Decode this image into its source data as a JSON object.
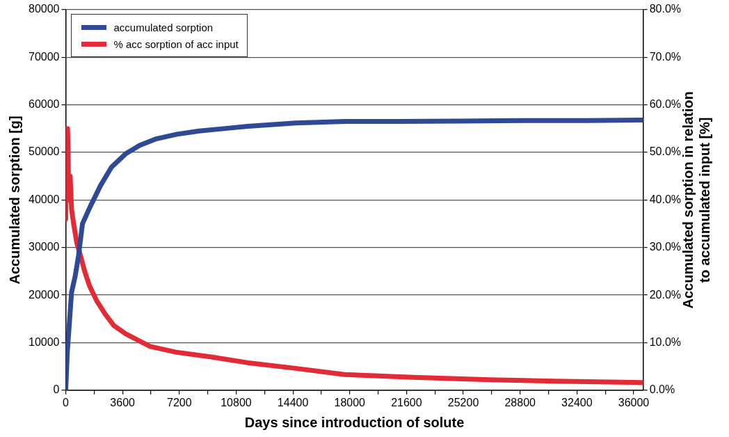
{
  "chart_data": {
    "type": "line",
    "xlabel": "Days since introduction of solute",
    "ylabel": "Accumulated sorption [g]",
    "y2label": "Accumulated sorption in relation to accumulated input [%]",
    "xlim": [
      0,
      36600
    ],
    "xticks": [
      0,
      {
        "value": 1800,
        "label": null
      },
      3600,
      {
        "value": 5400,
        "label": null
      },
      7200,
      {
        "value": 9000,
        "label": null
      },
      10800,
      {
        "value": 12600,
        "label": null
      },
      14400,
      {
        "value": 16200,
        "label": null
      },
      18000,
      {
        "value": 19800,
        "label": null
      },
      21600,
      {
        "value": 23400,
        "label": null
      },
      25200,
      {
        "value": 27000,
        "label": null
      },
      28800,
      {
        "value": 30600,
        "label": null
      },
      32400,
      {
        "value": 34200,
        "label": null
      },
      36000
    ],
    "ylim": [
      0,
      80000
    ],
    "yticks": [
      0,
      10000,
      20000,
      30000,
      40000,
      50000,
      60000,
      70000,
      80000
    ],
    "y2lim": [
      0,
      80
    ],
    "y2ticks": [
      {
        "value": 0,
        "label": "0.0%"
      },
      {
        "value": 10,
        "label": "10.0%"
      },
      {
        "value": 20,
        "label": "20.0%"
      },
      {
        "value": 30,
        "label": "30.0%"
      },
      {
        "value": 40,
        "label": "40.0%"
      },
      {
        "value": 50,
        "label": "50.0%"
      },
      {
        "value": 60,
        "label": "60.0%"
      },
      {
        "value": 70,
        "label": "70.0%"
      },
      {
        "value": 80,
        "label": "80.0%"
      }
    ],
    "grid": "y",
    "legend": "top left",
    "marker": "none",
    "line_style": "solid",
    "series": [
      {
        "name": "accumulated sorption",
        "color": "#2e4a97",
        "x": [
          0,
          100,
          250,
          370,
          600,
          800,
          1060,
          1520,
          2200,
          2900,
          3830,
          4700,
          5680,
          7000,
          8450,
          10000,
          11540,
          14580,
          17680,
          21000,
          25000,
          29000,
          33000,
          36600
        ],
        "values": [
          0,
          8000,
          15000,
          20600,
          24000,
          28000,
          35000,
          38400,
          43000,
          46900,
          49800,
          51500,
          52800,
          53800,
          54500,
          55000,
          55500,
          56200,
          56500,
          56500,
          56600,
          56700,
          56700,
          56800
        ]
      },
      {
        "name": "% acc sorption of acc input",
        "color": "#e32b36",
        "axis": "y2",
        "x": [
          0,
          30,
          120,
          200,
          280,
          370,
          500,
          700,
          920,
          1200,
          1500,
          1980,
          2500,
          3050,
          3830,
          5350,
          7000,
          9230,
          11500,
          14580,
          17680,
          22000,
          26900,
          31000,
          36600
        ],
        "values": [
          36,
          55,
          55,
          40,
          45,
          38,
          35,
          31,
          28.5,
          25,
          22,
          18.7,
          16,
          13.6,
          11.8,
          9.2,
          8,
          7,
          5.8,
          4.6,
          3.3,
          2.7,
          2.2,
          1.9,
          1.6
        ]
      }
    ]
  }
}
